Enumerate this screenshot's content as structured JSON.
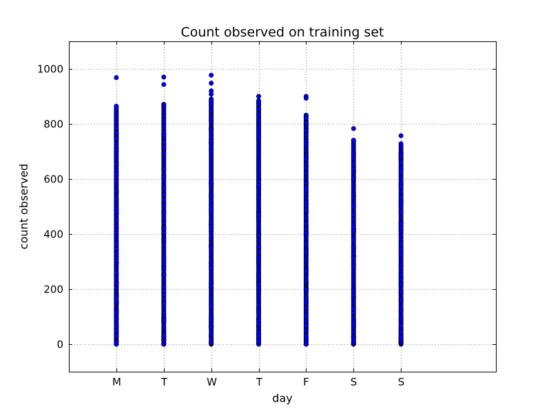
{
  "chart_data": {
    "type": "scatter",
    "title": "Count observed on training set",
    "xlabel": "day",
    "ylabel": "count observed",
    "categories": [
      "M",
      "T",
      "W",
      "T",
      "F",
      "S",
      "S"
    ],
    "xlim": [
      -1,
      8
    ],
    "ylim": [
      -100,
      1100
    ],
    "yticks": [
      0,
      200,
      400,
      600,
      800,
      1000
    ],
    "grid": true,
    "grid_style": "dotted",
    "marker_color": "#0000ff",
    "marker_edge_color": "#000000",
    "series": [
      {
        "category": "M",
        "x": 0,
        "dense_min": 0,
        "dense_max": 870,
        "outliers": [
          968
        ]
      },
      {
        "category": "T",
        "x": 1,
        "dense_min": 0,
        "dense_max": 876,
        "outliers": [
          970,
          943
        ]
      },
      {
        "category": "W",
        "x": 2,
        "dense_min": 0,
        "dense_max": 892,
        "outliers": [
          977,
          948,
          920,
          908
        ]
      },
      {
        "category": "T",
        "x": 3,
        "dense_min": 0,
        "dense_max": 890,
        "outliers": [
          900
        ]
      },
      {
        "category": "F",
        "x": 4,
        "dense_min": 0,
        "dense_max": 836,
        "outliers": [
          900,
          893
        ]
      },
      {
        "category": "S",
        "x": 5,
        "dense_min": 0,
        "dense_max": 744,
        "outliers": [
          783
        ]
      },
      {
        "category": "S",
        "x": 6,
        "dense_min": 0,
        "dense_max": 730,
        "outliers": [
          757
        ]
      }
    ]
  }
}
